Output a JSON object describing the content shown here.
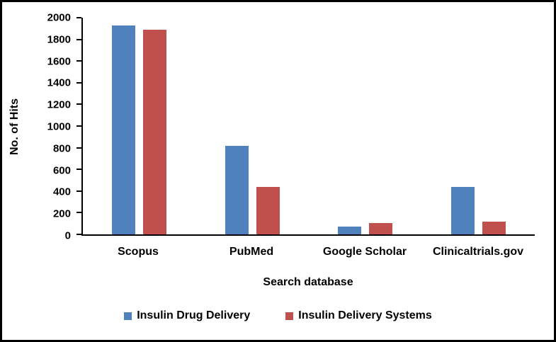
{
  "chart_data": {
    "type": "bar",
    "title": "",
    "categories": [
      "Scopus",
      "PubMed",
      "Google Scholar",
      "Clinicaltrials.gov"
    ],
    "series": [
      {
        "name": "Insulin Drug Delivery",
        "color": "#4F81BD",
        "values": [
          1930,
          820,
          75,
          440
        ]
      },
      {
        "name": "Insulin Delivery Systems",
        "color": "#C0504D",
        "values": [
          1890,
          440,
          105,
          115
        ]
      }
    ],
    "xlabel": "Search database",
    "ylabel": "No. of Hits",
    "ylim": [
      0,
      2000
    ],
    "ytick_step": 200,
    "grid": false,
    "legend_position": "bottom"
  }
}
